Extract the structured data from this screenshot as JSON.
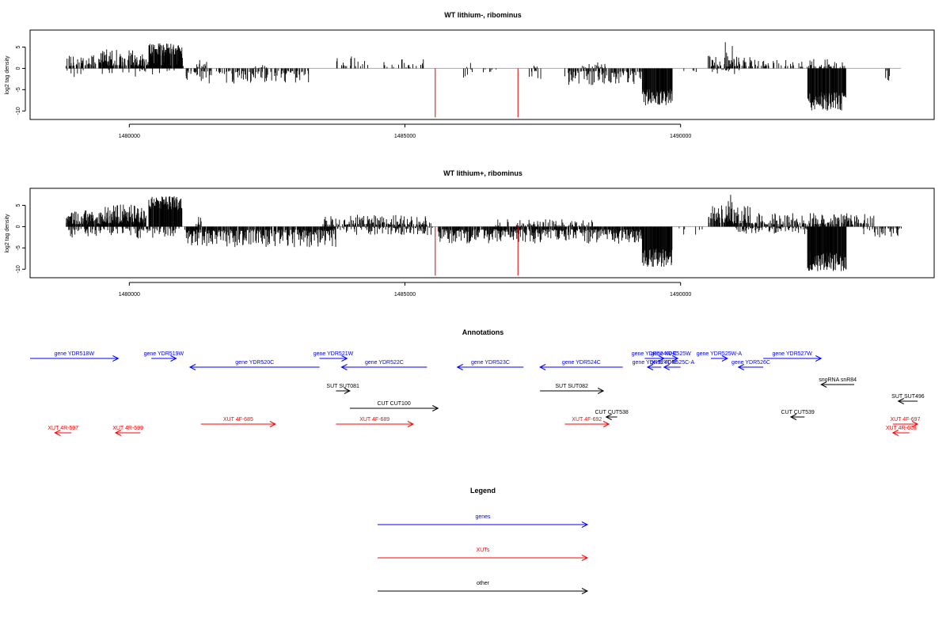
{
  "chart_data": [
    {
      "type": "bar",
      "title": "WT lithium-, ribominus",
      "ylabel": "log2 tag density",
      "xlim": [
        1478200,
        1494600
      ],
      "ylim": [
        -12,
        9
      ],
      "yticks": [
        5,
        0,
        -5,
        -10
      ],
      "xticks": [
        1480000,
        1485000,
        1490000
      ],
      "baseline_color": "#aaaaaa",
      "red_markers": [
        1485550,
        1487050
      ],
      "red_marker_depth": -11.5,
      "regions": [
        {
          "from": 1478850,
          "to": 1481000,
          "polarity": 1,
          "max": 3.4,
          "density": 0.55,
          "dense": false
        },
        {
          "from": 1479450,
          "to": 1480350,
          "polarity": 1,
          "max": 4.6,
          "density": 0.6,
          "dense": false
        },
        {
          "from": 1480350,
          "to": 1480950,
          "polarity": 1,
          "max": 6.0,
          "density": 0.9,
          "dense": true
        },
        {
          "from": 1478850,
          "to": 1480900,
          "polarity": -1,
          "max": 2.2,
          "density": 0.08,
          "dense": false
        },
        {
          "from": 1481000,
          "to": 1483250,
          "polarity": -1,
          "max": 3.6,
          "density": 0.4,
          "dense": false
        },
        {
          "from": 1481200,
          "to": 1481400,
          "polarity": 1,
          "max": 2.0,
          "density": 0.3,
          "dense": false
        },
        {
          "from": 1482200,
          "to": 1482500,
          "polarity": 1,
          "max": 0.8,
          "density": 0.2,
          "dense": false
        },
        {
          "from": 1483750,
          "to": 1484400,
          "polarity": 1,
          "max": 3.2,
          "density": 0.25,
          "dense": false
        },
        {
          "from": 1484550,
          "to": 1485450,
          "polarity": 1,
          "max": 2.2,
          "density": 0.2,
          "dense": false
        },
        {
          "from": 1485000,
          "to": 1485300,
          "polarity": 1,
          "max": 0.9,
          "density": 0.15,
          "dense": false
        },
        {
          "from": 1486050,
          "to": 1486300,
          "polarity": -1,
          "max": 2.2,
          "density": 0.25,
          "dense": false
        },
        {
          "from": 1486050,
          "to": 1486200,
          "polarity": 1,
          "max": 2.0,
          "density": 0.2,
          "dense": false
        },
        {
          "from": 1486400,
          "to": 1486650,
          "polarity": -1,
          "max": 1.2,
          "density": 0.2,
          "dense": false
        },
        {
          "from": 1487300,
          "to": 1487400,
          "polarity": 1,
          "max": 1.2,
          "density": 0.3,
          "dense": false
        },
        {
          "from": 1487250,
          "to": 1487500,
          "polarity": -1,
          "max": 2.5,
          "density": 0.3,
          "dense": false
        },
        {
          "from": 1487900,
          "to": 1489300,
          "polarity": -1,
          "max": 4.0,
          "density": 0.5,
          "dense": false
        },
        {
          "from": 1488200,
          "to": 1488700,
          "polarity": 1,
          "max": 1.4,
          "density": 0.25,
          "dense": false
        },
        {
          "from": 1489300,
          "to": 1489850,
          "polarity": -1,
          "max": 8.8,
          "density": 1.0,
          "dense": true
        },
        {
          "from": 1489900,
          "to": 1490300,
          "polarity": -1,
          "max": 1.5,
          "density": 0.1,
          "dense": false
        },
        {
          "from": 1490500,
          "to": 1491600,
          "polarity": 1,
          "max": 3.0,
          "density": 0.55,
          "dense": false
        },
        {
          "from": 1490800,
          "to": 1490950,
          "polarity": 1,
          "max": 6.8,
          "density": 0.3,
          "dense": false
        },
        {
          "from": 1491600,
          "to": 1493000,
          "polarity": 1,
          "max": 2.2,
          "density": 0.25,
          "dense": false
        },
        {
          "from": 1490500,
          "to": 1491200,
          "polarity": -1,
          "max": 1.5,
          "density": 0.15,
          "dense": false
        },
        {
          "from": 1492300,
          "to": 1493000,
          "polarity": -1,
          "max": 10.0,
          "density": 1.0,
          "dense": true
        },
        {
          "from": 1493700,
          "to": 1493800,
          "polarity": -1,
          "max": 3.0,
          "density": 0.3,
          "dense": false
        }
      ]
    },
    {
      "type": "bar",
      "title": "WT lithium+, ribominus",
      "ylabel": "log2 tag density",
      "xlim": [
        1478200,
        1494600
      ],
      "ylim": [
        -12,
        9
      ],
      "yticks": [
        5,
        0,
        -5,
        -10
      ],
      "xticks": [
        1480000,
        1485000,
        1490000
      ],
      "baseline_color": "#aaaaaa",
      "red_markers": [
        1485550,
        1487050
      ],
      "red_marker_depth": -11.5,
      "regions": [
        {
          "from": 1478850,
          "to": 1480300,
          "polarity": 1,
          "max": 3.8,
          "density": 0.9,
          "dense": false
        },
        {
          "from": 1479500,
          "to": 1480250,
          "polarity": 1,
          "max": 5.2,
          "density": 0.9,
          "dense": false
        },
        {
          "from": 1480350,
          "to": 1480950,
          "polarity": 1,
          "max": 7.2,
          "density": 1.0,
          "dense": true
        },
        {
          "from": 1478850,
          "to": 1480900,
          "polarity": -1,
          "max": 2.8,
          "density": 0.35,
          "dense": false
        },
        {
          "from": 1481000,
          "to": 1483750,
          "polarity": -1,
          "max": 4.8,
          "density": 0.8,
          "dense": false
        },
        {
          "from": 1481100,
          "to": 1481350,
          "polarity": 1,
          "max": 2.5,
          "density": 0.3,
          "dense": false
        },
        {
          "from": 1483500,
          "to": 1485500,
          "polarity": 1,
          "max": 2.8,
          "density": 0.5,
          "dense": false
        },
        {
          "from": 1483500,
          "to": 1485500,
          "polarity": -1,
          "max": 2.0,
          "density": 0.3,
          "dense": false
        },
        {
          "from": 1485600,
          "to": 1489300,
          "polarity": -1,
          "max": 4.0,
          "density": 0.85,
          "dense": false
        },
        {
          "from": 1486600,
          "to": 1488400,
          "polarity": 1,
          "max": 1.8,
          "density": 0.3,
          "dense": false
        },
        {
          "from": 1489300,
          "to": 1489850,
          "polarity": -1,
          "max": 9.5,
          "density": 1.0,
          "dense": true
        },
        {
          "from": 1489900,
          "to": 1490400,
          "polarity": -1,
          "max": 2.5,
          "density": 0.15,
          "dense": false
        },
        {
          "from": 1490500,
          "to": 1491300,
          "polarity": 1,
          "max": 5.0,
          "density": 0.8,
          "dense": false
        },
        {
          "from": 1490850,
          "to": 1490950,
          "polarity": 1,
          "max": 8.0,
          "density": 0.5,
          "dense": false
        },
        {
          "from": 1491300,
          "to": 1493500,
          "polarity": 1,
          "max": 3.2,
          "density": 0.55,
          "dense": false
        },
        {
          "from": 1491000,
          "to": 1492300,
          "polarity": -1,
          "max": 1.8,
          "density": 0.4,
          "dense": false
        },
        {
          "from": 1492300,
          "to": 1493000,
          "polarity": -1,
          "max": 10.5,
          "density": 1.0,
          "dense": true
        },
        {
          "from": 1493300,
          "to": 1494000,
          "polarity": -1,
          "max": 2.5,
          "density": 0.4,
          "dense": false
        }
      ]
    }
  ],
  "annotations": {
    "title": "Annotations",
    "colors": {
      "genes": "#0000ff",
      "XUTs": "#ff0000",
      "other": "#000000"
    },
    "features": [
      {
        "label": "gene YDR518W",
        "cat": "genes",
        "start": 1478200,
        "end": 1479800,
        "dir": 1,
        "row": 0
      },
      {
        "label": "gene YDR519W",
        "cat": "genes",
        "start": 1480400,
        "end": 1480850,
        "dir": 1,
        "row": 0
      },
      {
        "label": "gene YDR520C",
        "cat": "genes",
        "start": 1481100,
        "end": 1483450,
        "dir": -1,
        "row": 1
      },
      {
        "label": "gene YDR521W",
        "cat": "genes",
        "start": 1483450,
        "end": 1483950,
        "dir": 1,
        "row": 0
      },
      {
        "label": "gene YDR522C",
        "cat": "genes",
        "start": 1483850,
        "end": 1485400,
        "dir": -1,
        "row": 1
      },
      {
        "label": "gene YDR523C",
        "cat": "genes",
        "start": 1485950,
        "end": 1487150,
        "dir": -1,
        "row": 1
      },
      {
        "label": "gene YDR524C",
        "cat": "genes",
        "start": 1487450,
        "end": 1488950,
        "dir": -1,
        "row": 1
      },
      {
        "label": "gene YDR524W-C",
        "cat": "genes",
        "start": 1489350,
        "end": 1489700,
        "dir": 1,
        "row": 0
      },
      {
        "label": "gene YDR524C-B",
        "cat": "genes",
        "start": 1489400,
        "end": 1489650,
        "dir": -1,
        "row": 1
      },
      {
        "label": "gene YDR525W",
        "cat": "genes",
        "start": 1489700,
        "end": 1489950,
        "dir": 1,
        "row": 0
      },
      {
        "label": "gene YDR525W-A",
        "cat": "genes",
        "start": 1490550,
        "end": 1490850,
        "dir": 1,
        "row": 0
      },
      {
        "label": "gene YDR525C-A",
        "cat": "genes",
        "start": 1489700,
        "end": 1490000,
        "dir": -1,
        "row": 1
      },
      {
        "label": "gene YDR526C",
        "cat": "genes",
        "start": 1491050,
        "end": 1491500,
        "dir": -1,
        "row": 1
      },
      {
        "label": "gene YDR527W",
        "cat": "genes",
        "start": 1491500,
        "end": 1492550,
        "dir": 1,
        "row": 0
      },
      {
        "label": "SUT SUT081",
        "cat": "other",
        "start": 1483750,
        "end": 1484000,
        "dir": 1,
        "row": 2
      },
      {
        "label": "SUT SUT082",
        "cat": "other",
        "start": 1487450,
        "end": 1488600,
        "dir": 1,
        "row": 2
      },
      {
        "label": "snoRNA snR84",
        "cat": "other",
        "start": 1492550,
        "end": 1493150,
        "dir": -1,
        "row": 3
      },
      {
        "label": "SUT SUT496",
        "cat": "other",
        "start": 1493950,
        "end": 1494300,
        "dir": -1,
        "row": 4
      },
      {
        "label": "CUT CUT100",
        "cat": "other",
        "start": 1484000,
        "end": 1485600,
        "dir": 1,
        "row": 5
      },
      {
        "label": "CUT CUT538",
        "cat": "other",
        "start": 1488650,
        "end": 1488850,
        "dir": -1,
        "row": 6
      },
      {
        "label": "CUT CUT539",
        "cat": "other",
        "start": 1492000,
        "end": 1492250,
        "dir": -1,
        "row": 6
      },
      {
        "label": "XUT 4F-685",
        "cat": "XUTs",
        "start": 1481300,
        "end": 1482650,
        "dir": 1,
        "row": 7
      },
      {
        "label": "XUT 4F-689",
        "cat": "XUTs",
        "start": 1483750,
        "end": 1485150,
        "dir": 1,
        "row": 7
      },
      {
        "label": "XUT 4F-692",
        "cat": "XUTs",
        "start": 1487900,
        "end": 1488700,
        "dir": 1,
        "row": 7
      },
      {
        "label": "XUT 4F-697",
        "cat": "XUTs",
        "start": 1493850,
        "end": 1494300,
        "dir": 1,
        "row": 7
      },
      {
        "label": "XUT 4R-597",
        "cat": "XUTs",
        "start": 1478650,
        "end": 1478950,
        "dir": -1,
        "row": 8
      },
      {
        "label": "XUT 4R-599",
        "cat": "XUTs",
        "start": 1479750,
        "end": 1480200,
        "dir": -1,
        "row": 8
      },
      {
        "label": "XUT 4R-608",
        "cat": "XUTs",
        "start": 1493850,
        "end": 1494150,
        "dir": -1,
        "row": 8
      }
    ]
  },
  "legend": {
    "title": "Legend",
    "items": [
      {
        "label": "genes",
        "color": "#0000ff"
      },
      {
        "label": "XUTs",
        "color": "#ff0000"
      },
      {
        "label": "other",
        "color": "#000000"
      }
    ]
  }
}
